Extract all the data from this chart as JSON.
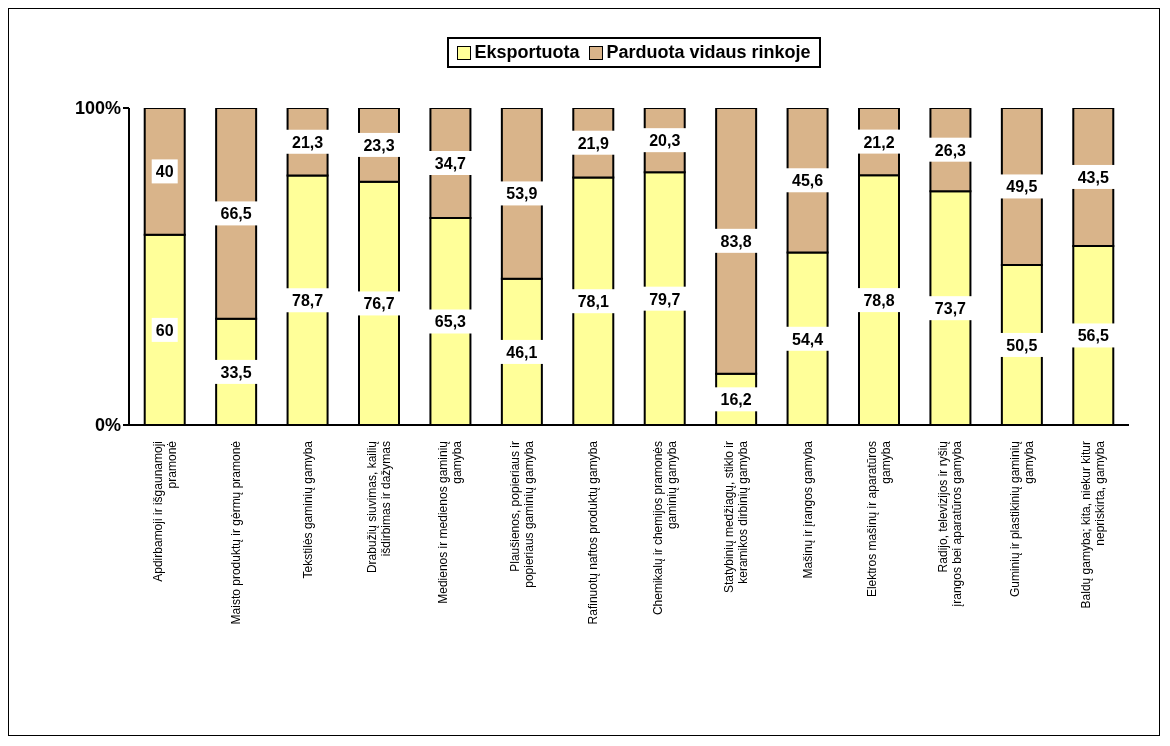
{
  "chart_data": {
    "type": "bar",
    "stacked": true,
    "categories": [
      "Apdirbamoji ir išgaunamoji pramonė",
      "Maisto produktų ir gėrmų pramonė",
      "Tekstilės gaminių gamyba",
      "Drabužių siuvimas, kailių išdirbimas ir dažymas",
      "Medienos ir medienos gaminių gamyba",
      "Plaušienos, popieriaus ir popieriaus gaminių gamyba",
      "Rafinuotų naftos produktų gamyba",
      "Chemikalų ir chemijos pramonės gaminių gamyba",
      "Statybinių medžiagų, stiklo ir keramikos dirbinių gamyba",
      "Mašinų ir įrangos gamyba",
      "Elektros mašinų ir aparatūros gamyba",
      "Radijo,  televizijos ir ryšių įrangos bei aparatūros gamyba",
      "Guminių ir plastikinių gaminių gamyba",
      "Baldų gamyba; kita, niekur kitur nepriskirta, gamyba"
    ],
    "series": [
      {
        "name": "Eksportuota",
        "color": "#ffff99",
        "values": [
          60,
          33.5,
          78.7,
          76.7,
          65.3,
          46.1,
          78.1,
          79.7,
          16.2,
          54.4,
          78.8,
          73.7,
          50.5,
          56.5
        ],
        "value_labels": [
          "60",
          "33,5",
          "78,7",
          "76,7",
          "65,3",
          "46,1",
          "78,1",
          "79,7",
          "16,2",
          "54,4",
          "78,8",
          "73,7",
          "50,5",
          "56,5"
        ]
      },
      {
        "name": "Parduota vidaus rinkoje",
        "color": "#d9b48a",
        "values": [
          40,
          66.5,
          21.3,
          23.3,
          34.7,
          53.9,
          21.9,
          20.3,
          83.8,
          45.6,
          21.2,
          26.3,
          49.5,
          43.5
        ],
        "value_labels": [
          "40",
          "66,5",
          "21,3",
          "23,3",
          "34,7",
          "53,9",
          "21,9",
          "20,3",
          "83,8",
          "45,6",
          "21,2",
          "26,3",
          "49,5",
          "43,5"
        ]
      }
    ],
    "ylim": [
      0,
      100
    ],
    "yticks": [
      {
        "value": 0,
        "label": "0%"
      },
      {
        "value": 100,
        "label": "100%"
      }
    ],
    "legend": "top"
  }
}
